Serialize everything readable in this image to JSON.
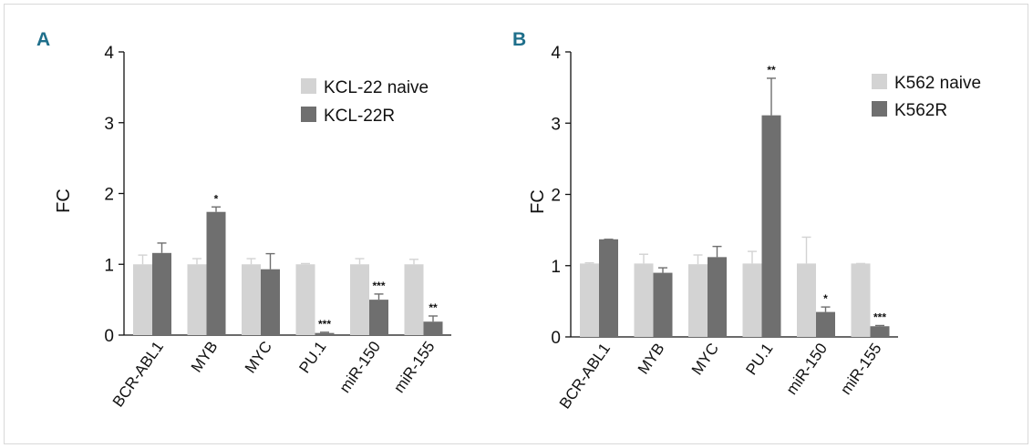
{
  "chart_data": [
    {
      "panel_label": "A",
      "type": "bar",
      "categories": [
        "BCR-ABL1",
        "MYB",
        "MYC",
        "PU.1",
        "miR-150",
        "miR-155"
      ],
      "series": [
        {
          "name": "KCL-22 naive",
          "color": "#d3d3d3",
          "values": [
            1.0,
            1.0,
            1.0,
            1.0,
            1.0,
            1.0
          ],
          "errors": [
            0.13,
            0.08,
            0.08,
            0.01,
            0.08,
            0.07
          ]
        },
        {
          "name": "KCL-22R",
          "color": "#6f6f6f",
          "values": [
            1.16,
            1.74,
            0.93,
            0.03,
            0.5,
            0.19
          ],
          "errors": [
            0.14,
            0.07,
            0.22,
            0.01,
            0.08,
            0.08
          ]
        }
      ],
      "significance": [
        "",
        "*",
        "",
        "***",
        "***",
        "**"
      ],
      "ylabel": "FC",
      "ylim": [
        0,
        4
      ],
      "yticks": [
        "0",
        "1",
        "2",
        "3",
        "4"
      ],
      "legend_position": "top-right",
      "grid": false
    },
    {
      "panel_label": "B",
      "type": "bar",
      "categories": [
        "BCR-ABL1",
        "MYB",
        "MYC",
        "PU.1",
        "miR-150",
        "miR-155"
      ],
      "series": [
        {
          "name": "K562 naive",
          "color": "#d3d3d3",
          "values": [
            1.03,
            1.03,
            1.02,
            1.03,
            1.03,
            1.03
          ],
          "errors": [
            0.01,
            0.13,
            0.13,
            0.17,
            0.37,
            0.0
          ]
        },
        {
          "name": "K562R",
          "color": "#6f6f6f",
          "values": [
            1.37,
            0.9,
            1.12,
            3.11,
            0.35,
            0.15
          ],
          "errors": [
            0.0,
            0.07,
            0.15,
            0.52,
            0.07,
            0.01
          ]
        }
      ],
      "significance": [
        "",
        "",
        "",
        "**",
        "*",
        "***"
      ],
      "ylabel": "FC",
      "ylim": [
        0,
        4
      ],
      "yticks": [
        "0",
        "1",
        "2",
        "3",
        "4"
      ],
      "legend_position": "top-right",
      "grid": false
    }
  ]
}
